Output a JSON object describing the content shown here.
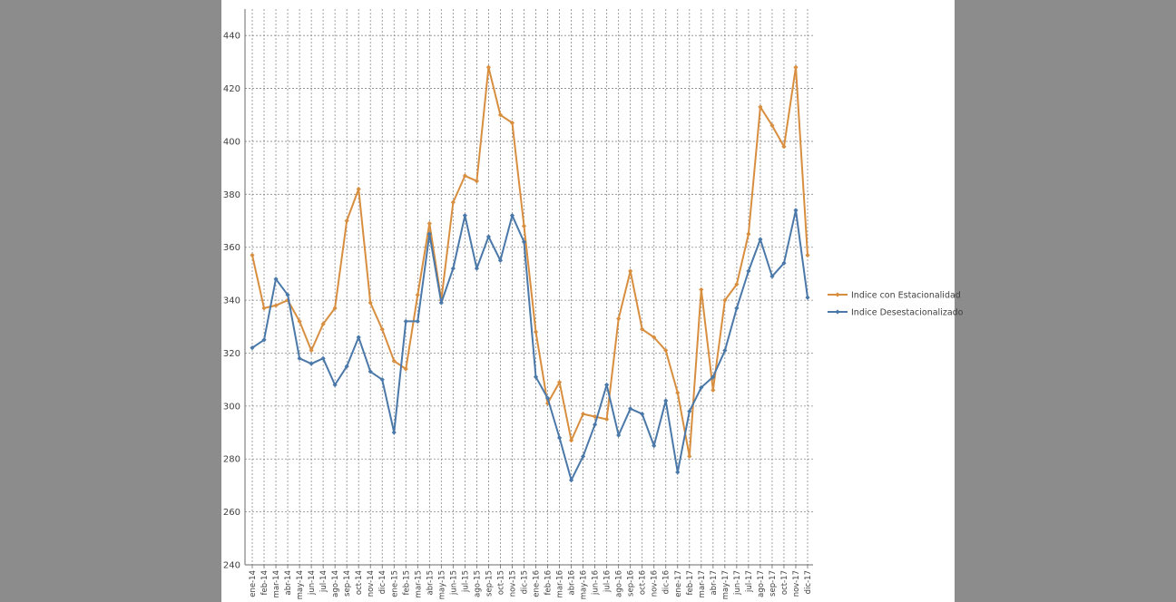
{
  "chart_data": {
    "type": "line",
    "title": "",
    "xlabel": "",
    "ylabel": "",
    "ylim": [
      240,
      450
    ],
    "yticks": [
      240,
      260,
      280,
      300,
      320,
      340,
      360,
      380,
      400,
      420,
      440
    ],
    "grid": true,
    "legend_position": "right",
    "categories": [
      "ene-14",
      "feb-14",
      "mar-14",
      "abr-14",
      "may-14",
      "jun-14",
      "jul-14",
      "ago-14",
      "sep-14",
      "oct-14",
      "nov-14",
      "dic-14",
      "ene-15",
      "feb-15",
      "mar-15",
      "abr-15",
      "may-15",
      "jun-15",
      "jul-15",
      "ago-15",
      "sep-15",
      "oct-15",
      "nov-15",
      "dic-15",
      "ene-16",
      "feb-16",
      "mar-16",
      "abr-16",
      "may-16",
      "jun-16",
      "jul-16",
      "ago-16",
      "sep-16",
      "oct-16",
      "nov-16",
      "dic-16",
      "ene-17",
      "feb-17",
      "mar-17",
      "abr-17",
      "may-17",
      "jun-17",
      "jul-17",
      "ago-17",
      "sep-17",
      "oct-17",
      "nov-17",
      "dic-17"
    ],
    "series": [
      {
        "name": "Indice con Estacionalidad",
        "color": "#d88e3f",
        "values": [
          357,
          337,
          338,
          340,
          332,
          321,
          331,
          337,
          370,
          382,
          339,
          329,
          317,
          314,
          342,
          369,
          340,
          377,
          387,
          385,
          428,
          410,
          407,
          368,
          328,
          301,
          309,
          287,
          297,
          296,
          295,
          333,
          351,
          329,
          326,
          321,
          305,
          281,
          344,
          306,
          340,
          346,
          365,
          413,
          406,
          398,
          428,
          357
        ]
      },
      {
        "name": "Indice Desestacionalizado",
        "color": "#4a78a8",
        "values": [
          322,
          325,
          348,
          342,
          318,
          316,
          318,
          308,
          315,
          326,
          313,
          310,
          290,
          332,
          332,
          365,
          339,
          352,
          372,
          352,
          364,
          355,
          372,
          362,
          311,
          303,
          288,
          272,
          281,
          293,
          308,
          289,
          299,
          297,
          285,
          302,
          275,
          298,
          307,
          311,
          321,
          337,
          351,
          363,
          349,
          354,
          374,
          341
        ]
      }
    ]
  }
}
